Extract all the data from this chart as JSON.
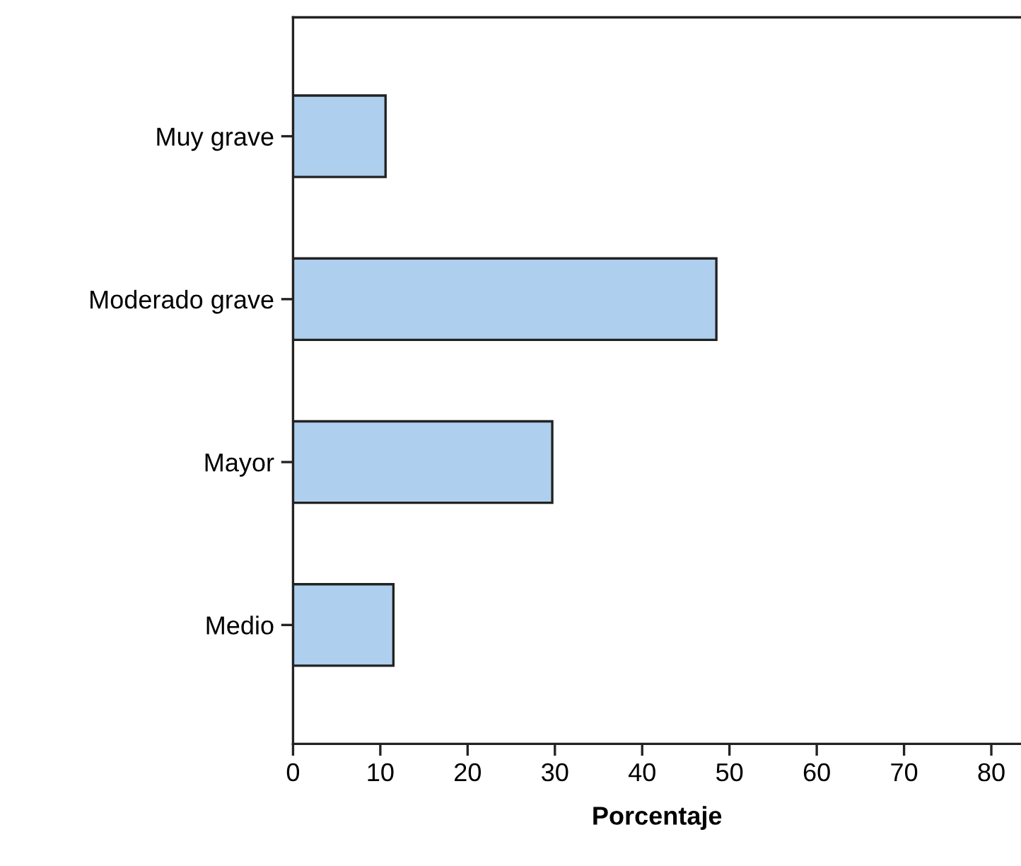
{
  "chart_data": {
    "type": "bar",
    "orientation": "horizontal",
    "xlabel": "Porcentaje",
    "categories": [
      "Muy grave",
      "Moderado grave",
      "Mayor",
      "Medio"
    ],
    "values": [
      10.6,
      48.5,
      29.7,
      11.5
    ],
    "color": "#aecfed",
    "xlim": [
      0,
      83.4
    ],
    "xticks": [
      0,
      10,
      20,
      30,
      40,
      50,
      60,
      70,
      80
    ],
    "grid": false,
    "legend": false
  }
}
